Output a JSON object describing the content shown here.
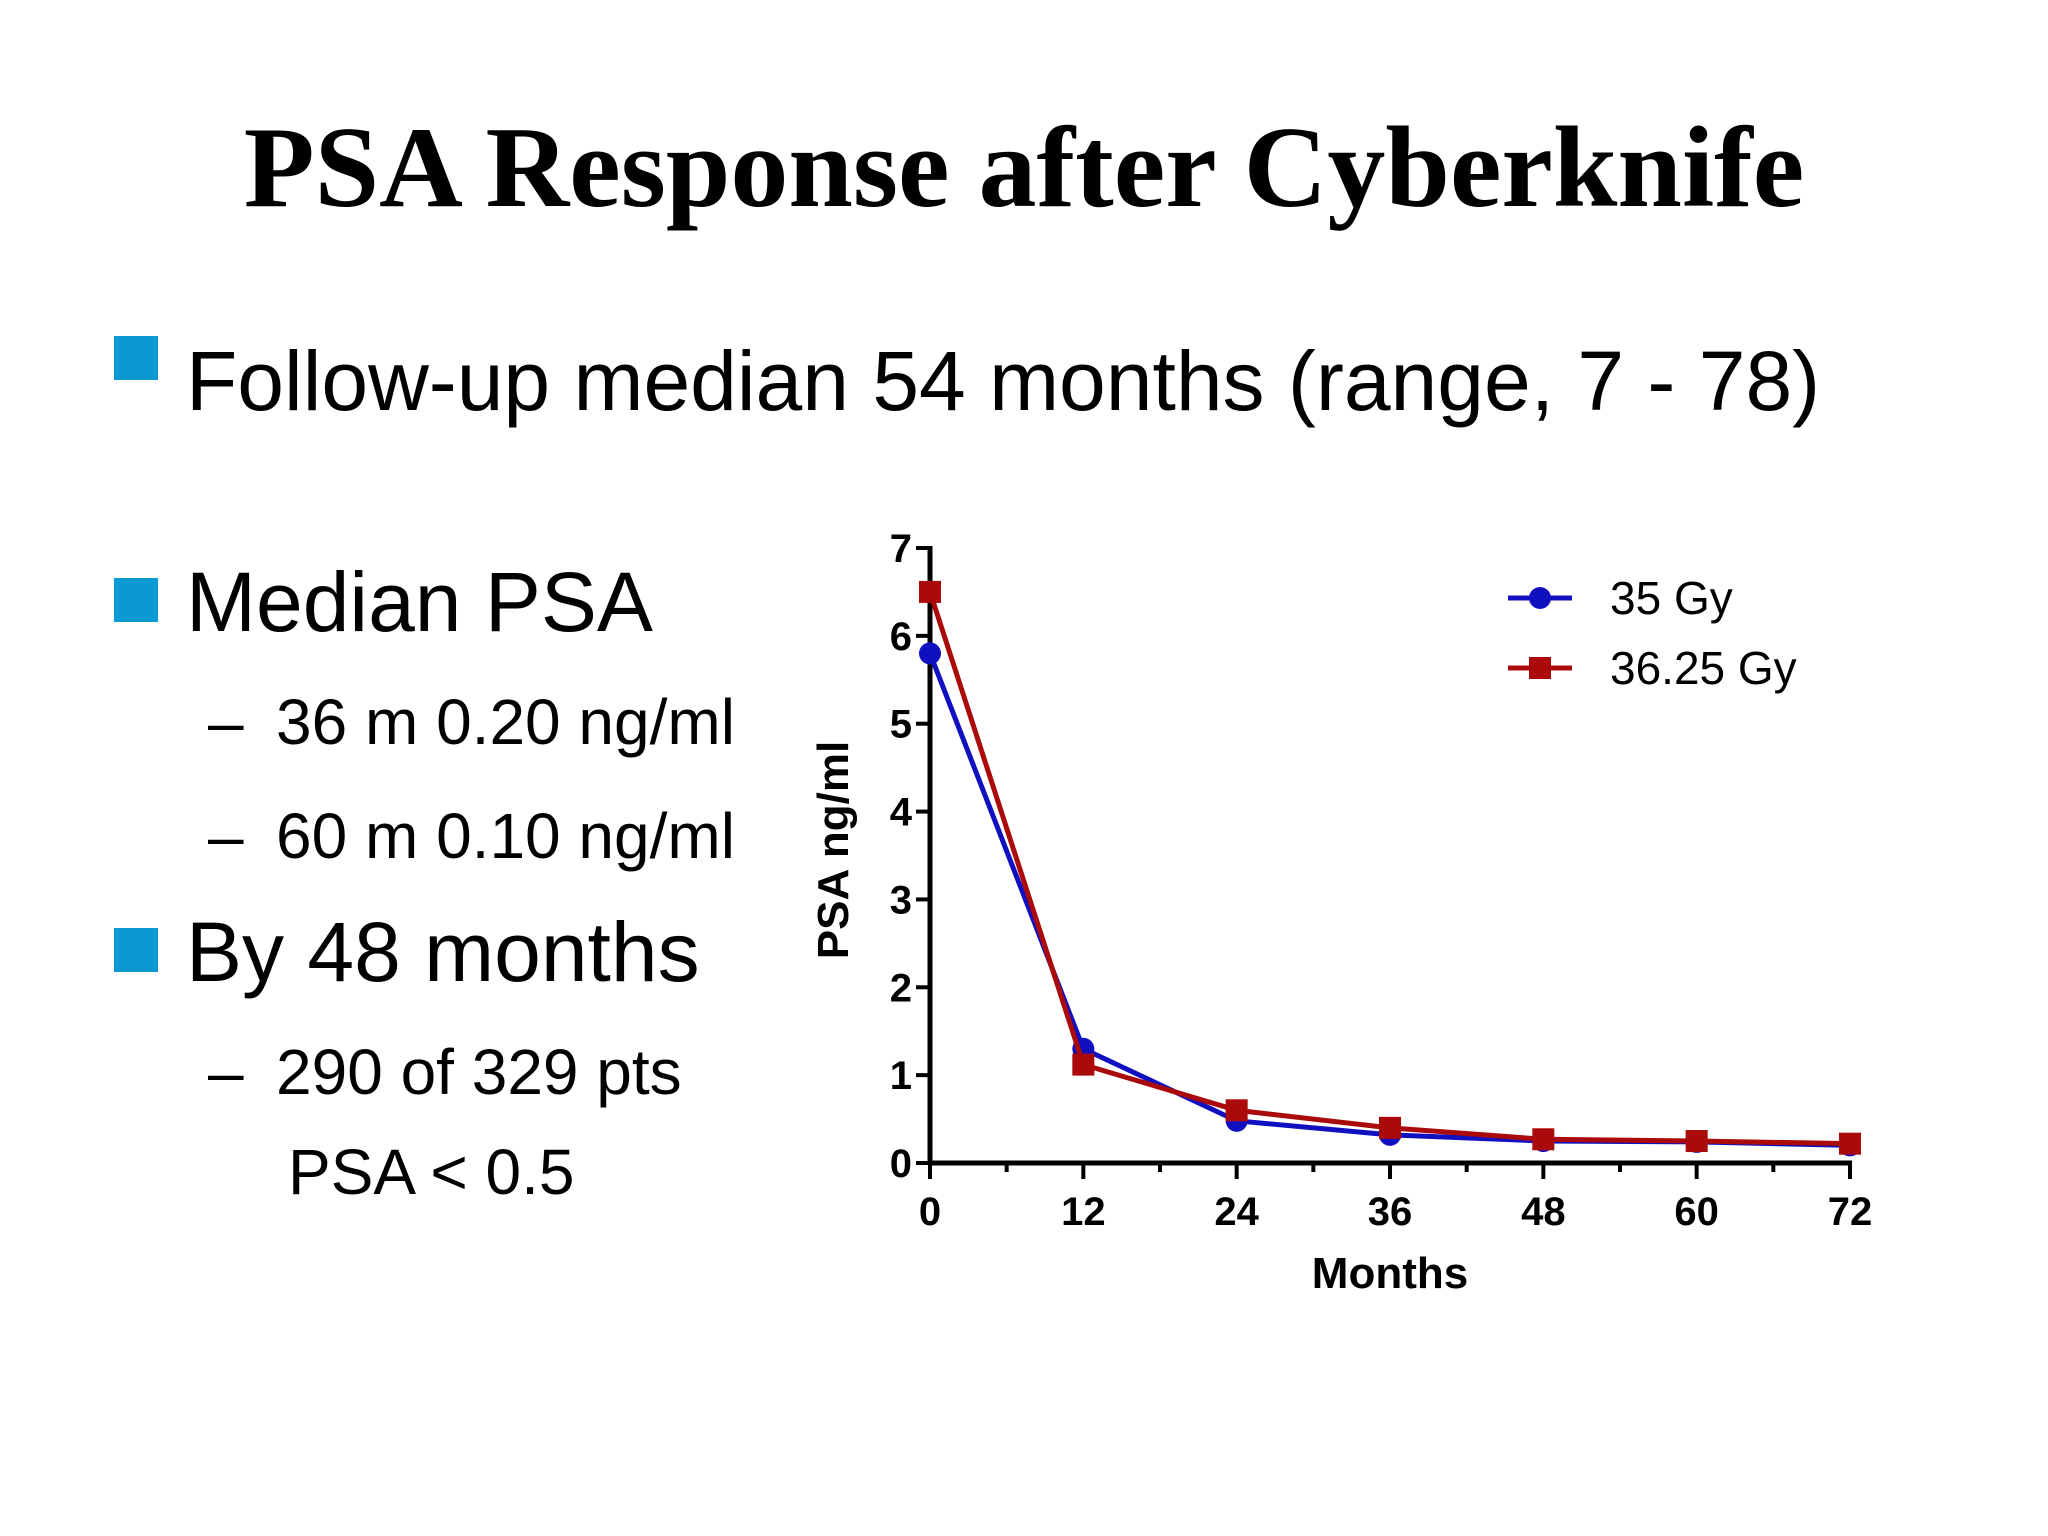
{
  "slide": {
    "title": "PSA Response after Cyberknife",
    "bullets": [
      {
        "text": "Follow-up median 54 months (range, 7 - 78)"
      },
      {
        "text": "Median PSA",
        "subs": [
          "36 m 0.20 ng/ml",
          "60 m 0.10 ng/ml"
        ]
      },
      {
        "text": "By 48 months",
        "subs": [
          "290 of 329 pts"
        ],
        "sub_cont": "PSA < 0.5"
      }
    ],
    "dash": "–",
    "bullet_color": "#0c99d1"
  },
  "chart_data": {
    "type": "line",
    "xlabel": "Months",
    "ylabel": "PSA ng/ml",
    "x": [
      0,
      12,
      24,
      36,
      48,
      60,
      72
    ],
    "xlim": [
      0,
      72
    ],
    "ylim": [
      0,
      7
    ],
    "xticks": [
      0,
      12,
      24,
      36,
      48,
      60,
      72
    ],
    "yticks": [
      0,
      1,
      2,
      3,
      4,
      5,
      6,
      7
    ],
    "legend_position": "top-right",
    "grid": false,
    "series": [
      {
        "name": "35 Gy",
        "color": "#1010c0",
        "marker": "circle",
        "values": [
          5.8,
          1.3,
          0.48,
          0.32,
          0.25,
          0.24,
          0.2
        ]
      },
      {
        "name": "36.25 Gy",
        "color": "#aa0a0a",
        "marker": "square",
        "values": [
          6.5,
          1.12,
          0.6,
          0.4,
          0.27,
          0.25,
          0.22
        ]
      }
    ]
  }
}
